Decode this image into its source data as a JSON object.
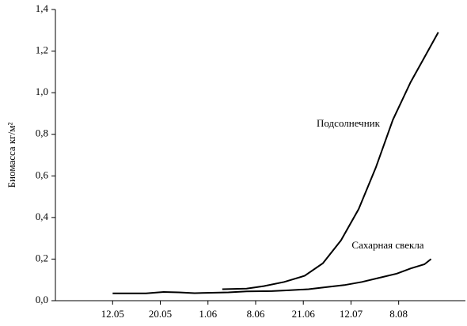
{
  "chart_data": {
    "type": "line",
    "y_label": "Биомасса кг/м²",
    "xticks": [
      {
        "value": 0,
        "label": "12.05"
      },
      {
        "value": 1,
        "label": "20.05"
      },
      {
        "value": 2,
        "label": "1.06"
      },
      {
        "value": 3,
        "label": "8.06"
      },
      {
        "value": 4,
        "label": "21.06"
      },
      {
        "value": 5,
        "label": "12.07"
      },
      {
        "value": 6,
        "label": "8.08"
      }
    ],
    "xlim": [
      -1.2,
      7.4
    ],
    "ylim": [
      0,
      1.4
    ],
    "yticks": [
      {
        "value": 0,
        "label": "0,0"
      },
      {
        "value": 0.2,
        "label": "0,2"
      },
      {
        "value": 0.4,
        "label": "0,4"
      },
      {
        "value": 0.6,
        "label": "0,6"
      },
      {
        "value": 0.8,
        "label": "0,8"
      },
      {
        "value": 1.0,
        "label": "1,0"
      },
      {
        "value": 1.2,
        "label": "1,2"
      },
      {
        "value": 1.4,
        "label": "1,4"
      }
    ],
    "series": [
      {
        "name": "Подсолнечник",
        "color": "#000000",
        "x": [
          2.3,
          2.81,
          3.17,
          3.6,
          4.03,
          4.41,
          4.79,
          5.16,
          5.52,
          5.88,
          6.25,
          6.54,
          6.83
        ],
        "values": [
          0.055,
          0.058,
          0.07,
          0.09,
          0.12,
          0.18,
          0.29,
          0.44,
          0.64,
          0.87,
          1.05,
          1.17,
          1.29
        ]
      },
      {
        "name": "Сахарная свекла",
        "color": "#000000",
        "x": [
          0,
          0.7,
          1.07,
          1.39,
          1.72,
          2.06,
          2.43,
          2.81,
          3.34,
          3.69,
          4.11,
          4.48,
          4.86,
          5.23,
          5.59,
          5.96,
          6.25,
          6.54,
          6.68
        ],
        "values": [
          0.035,
          0.035,
          0.042,
          0.04,
          0.036,
          0.038,
          0.04,
          0.045,
          0.046,
          0.05,
          0.055,
          0.065,
          0.075,
          0.09,
          0.11,
          0.13,
          0.155,
          0.175,
          0.2
        ]
      }
    ]
  }
}
